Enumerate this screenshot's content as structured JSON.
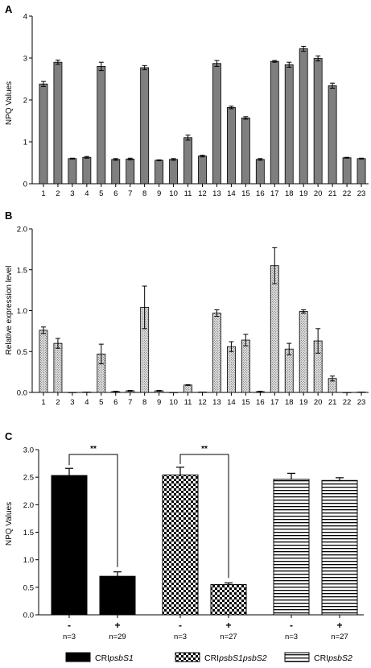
{
  "colors": {
    "bar_grey": "#7f7f7f",
    "stipple_bg": "#e6e6e6",
    "black": "#000000"
  },
  "chart_data": [
    {
      "panel": "A",
      "type": "bar",
      "ylabel": "NPQ Values",
      "ylim": [
        0,
        4
      ],
      "yticks": [
        "0",
        "1",
        "2",
        "3",
        "4"
      ],
      "categories": [
        "1",
        "2",
        "3",
        "4",
        "5",
        "6",
        "7",
        "8",
        "9",
        "10",
        "11",
        "12",
        "13",
        "14",
        "15",
        "16",
        "17",
        "18",
        "19",
        "20",
        "21",
        "22",
        "23"
      ],
      "values": [
        2.38,
        2.9,
        0.6,
        0.63,
        2.8,
        0.58,
        0.59,
        2.77,
        0.56,
        0.58,
        1.1,
        0.66,
        2.87,
        1.82,
        1.57,
        0.58,
        2.92,
        2.84,
        3.22,
        2.99,
        2.34,
        0.62,
        0.6
      ],
      "errors": [
        0.06,
        0.05,
        0.01,
        0.02,
        0.1,
        0.02,
        0.02,
        0.05,
        0.01,
        0.02,
        0.06,
        0.02,
        0.07,
        0.03,
        0.03,
        0.02,
        0.02,
        0.06,
        0.06,
        0.06,
        0.06,
        0.01,
        0.01
      ],
      "pattern": "solid-grey"
    },
    {
      "panel": "B",
      "type": "bar",
      "ylabel": "Relative expression level",
      "ylim": [
        0,
        2.0
      ],
      "yticks": [
        "0.0",
        "0.5",
        "1.0",
        "1.5",
        "2.0"
      ],
      "categories": [
        "1",
        "2",
        "3",
        "4",
        "5",
        "6",
        "7",
        "8",
        "9",
        "10",
        "11",
        "12",
        "13",
        "14",
        "15",
        "16",
        "17",
        "18",
        "19",
        "20",
        "21",
        "22",
        "23"
      ],
      "values": [
        0.76,
        0.6,
        0.0,
        0.005,
        0.47,
        0.01,
        0.02,
        1.04,
        0.02,
        0.0,
        0.09,
        0.005,
        0.97,
        0.56,
        0.64,
        0.01,
        1.55,
        0.53,
        0.99,
        0.63,
        0.17,
        0.0,
        0.005
      ],
      "errors": [
        0.04,
        0.06,
        0.0,
        0.0,
        0.12,
        0.005,
        0.005,
        0.26,
        0.005,
        0.0,
        0.005,
        0.0,
        0.04,
        0.06,
        0.07,
        0.005,
        0.22,
        0.07,
        0.02,
        0.15,
        0.03,
        0.0,
        0.0
      ],
      "pattern": "stipple"
    },
    {
      "panel": "C",
      "type": "bar",
      "ylabel": "NPQ Values",
      "ylim": [
        0,
        3.0
      ],
      "yticks": [
        "0.0",
        "0.5",
        "1.0",
        "1.5",
        "2.0",
        "2.5",
        "3.0"
      ],
      "bars": [
        {
          "sign": "-",
          "n": "n=3",
          "value": 2.53,
          "error": 0.13,
          "pattern": "black"
        },
        {
          "sign": "+",
          "n": "n=29",
          "value": 0.7,
          "error": 0.08,
          "pattern": "black"
        },
        {
          "sign": "-",
          "n": "n=3",
          "value": 2.54,
          "error": 0.14,
          "pattern": "checker"
        },
        {
          "sign": "+",
          "n": "n=27",
          "value": 0.55,
          "error": 0.03,
          "pattern": "checker"
        },
        {
          "sign": "-",
          "n": "n=3",
          "value": 2.46,
          "error": 0.11,
          "pattern": "hstripe"
        },
        {
          "sign": "+",
          "n": "n=27",
          "value": 2.44,
          "error": 0.05,
          "pattern": "hstripe"
        }
      ],
      "significance": [
        {
          "from": 0,
          "to": 1,
          "label": "**"
        },
        {
          "from": 2,
          "to": 3,
          "label": "**"
        }
      ],
      "legend": [
        {
          "prefix": "CRI",
          "italic": "psbS1",
          "pattern": "black"
        },
        {
          "prefix": "CRI",
          "italic": "psbS1psbS2",
          "pattern": "checker"
        },
        {
          "prefix": "CRI",
          "italic": "psbS2",
          "pattern": "hstripe"
        }
      ]
    }
  ]
}
